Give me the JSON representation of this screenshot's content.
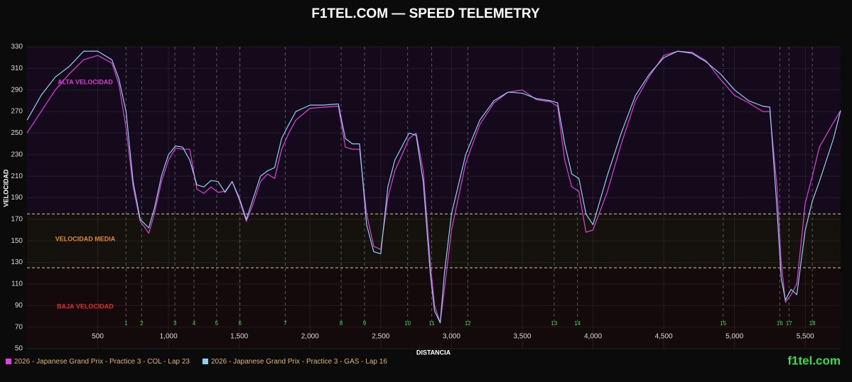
{
  "chart_data": {
    "type": "line",
    "title": "F1TEL.COM — SPEED TELEMETRY",
    "x_label": "DISTANCIA",
    "y_label": "VELOCIDAD",
    "watermark": "f1tel.com",
    "grid": true,
    "xlim": [
      0,
      5750
    ],
    "ylim": [
      50,
      330
    ],
    "xticks": [
      500,
      {
        "value": 1000,
        "label": "1,000"
      },
      {
        "value": 1500,
        "label": "1,500"
      },
      {
        "value": 2000,
        "label": "2,000"
      },
      {
        "value": 2500,
        "label": "2,500"
      },
      {
        "value": 3000,
        "label": "3,000"
      },
      {
        "value": 3500,
        "label": "3,500"
      },
      {
        "value": 4000,
        "label": "4,000"
      },
      {
        "value": 4500,
        "label": "4,500"
      },
      {
        "value": 5000,
        "label": "5,000"
      },
      {
        "value": 5500,
        "label": "5,500"
      }
    ],
    "yticks": [
      50,
      70,
      90,
      110,
      130,
      150,
      170,
      190,
      210,
      230,
      250,
      270,
      290,
      310,
      330
    ],
    "zones": [
      {
        "label": "ALTA VELOCIDAD",
        "from": 175,
        "to": 330,
        "color": "#d63bd6",
        "background": "#140a1b"
      },
      {
        "label": "VELOCIDAD MEDIA",
        "from": 125,
        "to": 175,
        "color": "#e08a2c",
        "background": "#15110c"
      },
      {
        "label": "BAJA VELOCIDAD",
        "from": 50,
        "to": 125,
        "color": "#e02a2a",
        "background": "#150a0b"
      }
    ],
    "corners": {
      "numbers": [
        1,
        2,
        3,
        4,
        5,
        6,
        7,
        8,
        9,
        10,
        11,
        12,
        13,
        14,
        15,
        16,
        17,
        18
      ],
      "positions": [
        700,
        810,
        1045,
        1180,
        1340,
        1505,
        1825,
        2220,
        2385,
        2690,
        2860,
        3115,
        3725,
        3890,
        4920,
        5320,
        5385,
        5550
      ]
    },
    "x": [
      0,
      100,
      200,
      300,
      400,
      500,
      600,
      650,
      700,
      750,
      800,
      830,
      860,
      900,
      950,
      1000,
      1050,
      1100,
      1150,
      1200,
      1250,
      1300,
      1350,
      1400,
      1450,
      1500,
      1550,
      1600,
      1650,
      1700,
      1750,
      1800,
      1850,
      1900,
      2000,
      2100,
      2200,
      2250,
      2300,
      2350,
      2400,
      2450,
      2500,
      2550,
      2600,
      2700,
      2750,
      2800,
      2850,
      2880,
      2920,
      2950,
      3000,
      3100,
      3200,
      3300,
      3400,
      3500,
      3600,
      3700,
      3750,
      3800,
      3850,
      3900,
      3950,
      4000,
      4100,
      4200,
      4300,
      4400,
      4500,
      4600,
      4700,
      4800,
      4900,
      5000,
      5100,
      5200,
      5250,
      5300,
      5330,
      5360,
      5400,
      5440,
      5500,
      5550,
      5600,
      5700,
      5750
    ],
    "series": [
      {
        "name": "2026 - Japanese Grand Prix - Practice 3 - COL - Lap 23",
        "color": "#e040e0",
        "values": [
          250,
          270,
          290,
          305,
          318,
          322,
          315,
          295,
          255,
          200,
          168,
          163,
          157,
          175,
          205,
          225,
          236,
          235,
          235,
          198,
          194,
          200,
          195,
          196,
          205,
          188,
          168,
          185,
          205,
          212,
          208,
          235,
          250,
          262,
          273,
          274,
          275,
          237,
          235,
          235,
          175,
          145,
          142,
          190,
          215,
          245,
          250,
          215,
          130,
          90,
          74,
          105,
          160,
          222,
          258,
          278,
          288,
          290,
          281,
          279,
          275,
          225,
          200,
          196,
          158,
          160,
          195,
          240,
          280,
          303,
          322,
          326,
          325,
          317,
          300,
          285,
          278,
          270,
          270,
          200,
          130,
          93,
          100,
          110,
          185,
          210,
          237,
          260,
          271
        ]
      },
      {
        "name": "2026 - Japanese Grand Prix - Practice 3 - GAS - Lap 16",
        "color": "#8fd3f0",
        "values": [
          262,
          285,
          302,
          312,
          326,
          326,
          318,
          300,
          270,
          205,
          170,
          166,
          162,
          180,
          210,
          230,
          238,
          237,
          225,
          202,
          200,
          206,
          205,
          195,
          205,
          190,
          170,
          190,
          210,
          215,
          218,
          245,
          258,
          270,
          276,
          276,
          277,
          245,
          240,
          240,
          165,
          140,
          138,
          200,
          225,
          250,
          248,
          205,
          120,
          85,
          74,
          120,
          175,
          230,
          262,
          280,
          288,
          287,
          282,
          280,
          278,
          240,
          212,
          208,
          175,
          165,
          210,
          250,
          285,
          305,
          320,
          326,
          324,
          316,
          305,
          290,
          280,
          275,
          274,
          180,
          115,
          95,
          105,
          100,
          160,
          187,
          205,
          245,
          271
        ]
      }
    ]
  }
}
